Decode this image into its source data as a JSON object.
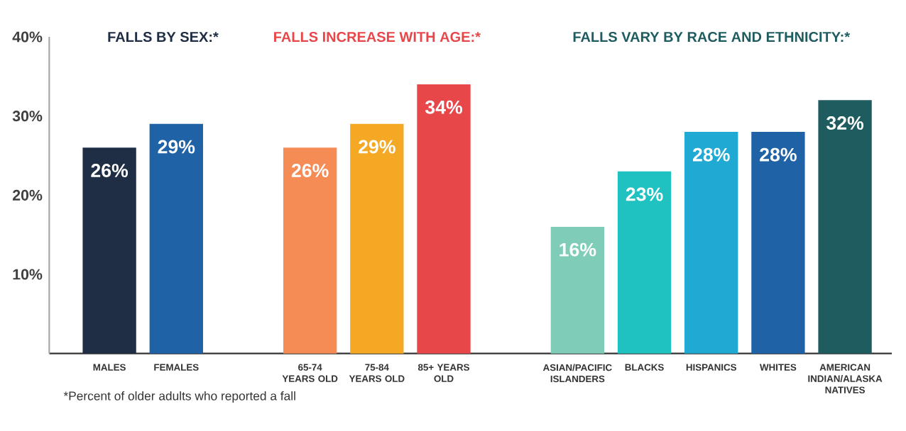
{
  "chart_data": {
    "type": "bar",
    "categories": [
      "MALES",
      "FEMALES",
      null,
      "65-74 YEARS OLD",
      "75-84 YEARS OLD",
      "85+ YEARS OLD",
      null,
      "ASIAN/PACIFIC ISLANDERS",
      "BLACKS",
      "HISPANICS",
      "WHITES",
      "AMERICAN INDIAN/ALASKA NATIVES"
    ],
    "values": [
      26,
      29,
      null,
      26,
      29,
      34,
      null,
      16,
      23,
      28,
      28,
      32
    ],
    "colors": [
      "#1f2d45",
      "#1f62a5",
      null,
      "#f58b55",
      "#f4a823",
      "#e8474a",
      null,
      "#7fcdb8",
      "#1fc2c0",
      "#1fa9d3",
      "#1f62a5",
      "#1e5c60"
    ],
    "value_labels": [
      "26%",
      "29%",
      null,
      "26%",
      "29%",
      "34%",
      null,
      "16%",
      "23%",
      "28%",
      "28%",
      "32%"
    ],
    "ylim": [
      0,
      40
    ],
    "yticks": [
      {
        "value": 10,
        "label": "10%"
      },
      {
        "value": 20,
        "label": "20%"
      },
      {
        "value": 30,
        "label": "30%"
      },
      {
        "value": 40,
        "label": "40%"
      }
    ],
    "annotations": [
      "FALLS BY SEX:*",
      "FALLS INCREASE WITH AGE:*",
      "FALLS VARY BY RACE AND ETHNICITY:*",
      "*Percent of older adults who reported a fall"
    ]
  }
}
